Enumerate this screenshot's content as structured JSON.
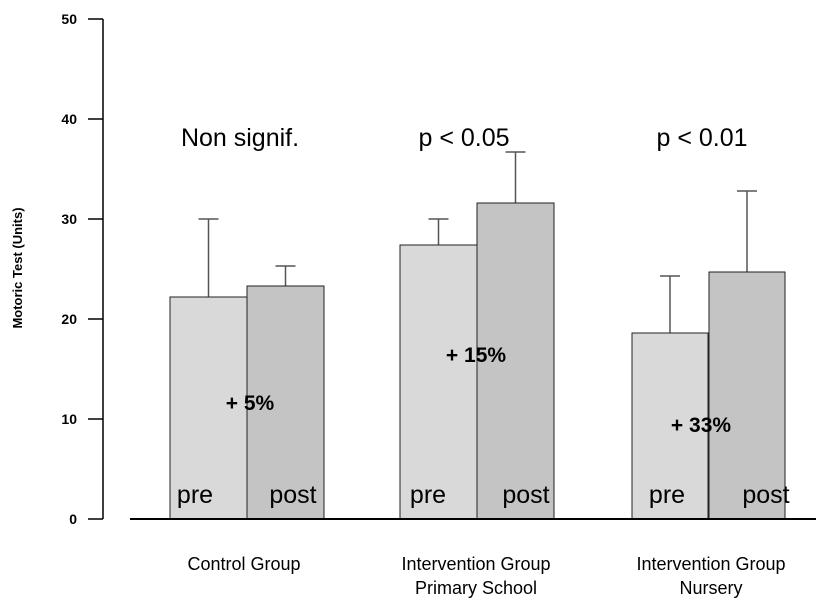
{
  "chart_data": {
    "type": "bar",
    "title": "",
    "ylabel": "Motoric Test (Units)",
    "xlabel": "",
    "ylim": [
      0,
      50
    ],
    "yticks": [
      0,
      10,
      20,
      30,
      40,
      50
    ],
    "grid": false,
    "groups": [
      {
        "label_lines": [
          "Control Group"
        ],
        "significance": "Non signif.",
        "change": "+ 5%",
        "bars": [
          {
            "label": "pre",
            "value": 22.2,
            "error": 7.8,
            "color": "#d9d9d9"
          },
          {
            "label": "post",
            "value": 23.3,
            "error": 2.0,
            "color": "#c4c4c4"
          }
        ]
      },
      {
        "label_lines": [
          "Intervention Group",
          "Primary School"
        ],
        "significance": "p < 0.05",
        "change": "+ 15%",
        "bars": [
          {
            "label": "pre",
            "value": 27.4,
            "error": 2.6,
            "color": "#d9d9d9"
          },
          {
            "label": "post",
            "value": 31.6,
            "error": 5.1,
            "color": "#c4c4c4"
          }
        ]
      },
      {
        "label_lines": [
          "Intervention Group",
          "Nursery"
        ],
        "significance": "p < 0.01",
        "change": "+ 33%",
        "bars": [
          {
            "label": "pre",
            "value": 18.6,
            "error": 5.7,
            "color": "#d9d9d9"
          },
          {
            "label": "post",
            "value": 24.7,
            "error": 8.1,
            "color": "#c4c4c4"
          }
        ]
      }
    ]
  }
}
